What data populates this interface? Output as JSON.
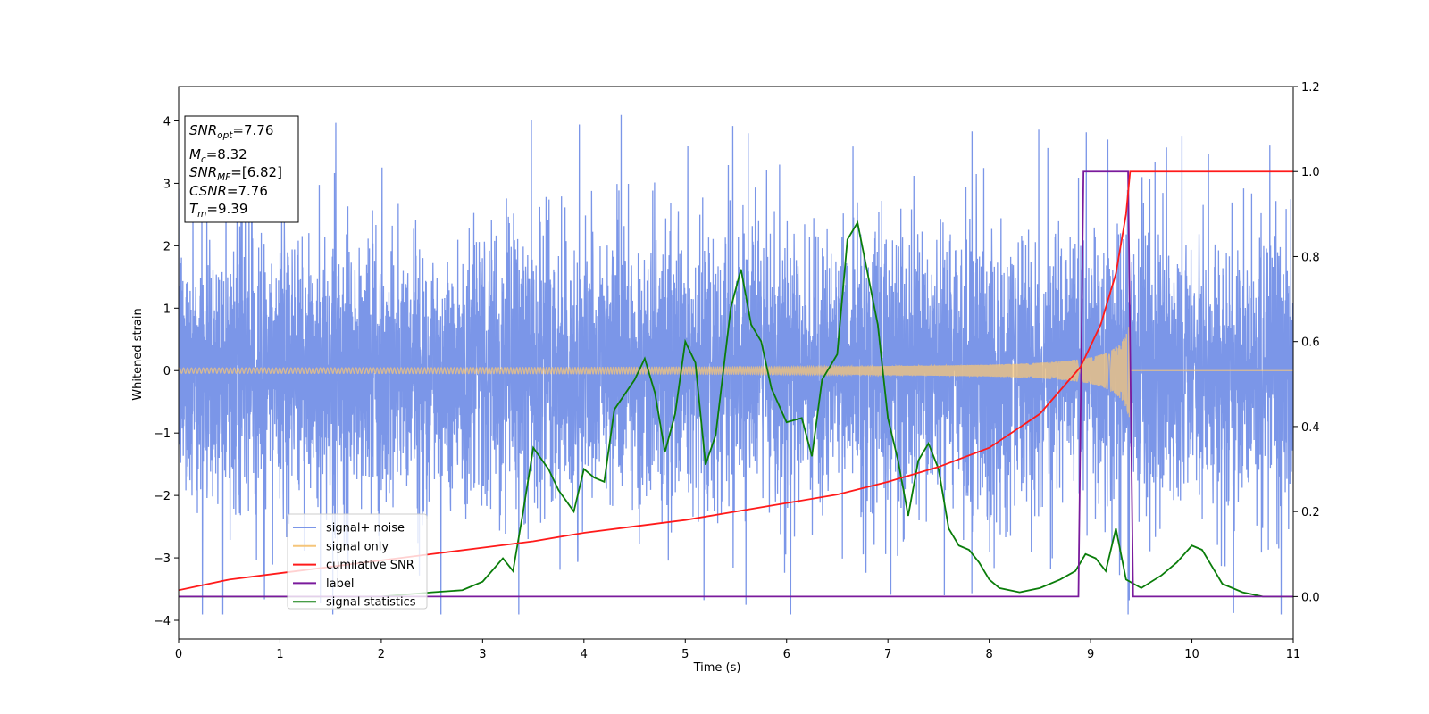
{
  "chart_data": {
    "type": "line",
    "xlabel": "Time (s)",
    "ylabel": "Whitened strain",
    "xlim": [
      0,
      11
    ],
    "ylim_left": [
      -4.3,
      4.55
    ],
    "ylim_right": [
      -0.1,
      1.2
    ],
    "x_ticks": [
      "0",
      "1",
      "2",
      "3",
      "4",
      "5",
      "6",
      "7",
      "8",
      "9",
      "10",
      "11"
    ],
    "y_ticks_left": [
      "−4",
      "−3",
      "−2",
      "−1",
      "0",
      "1",
      "2",
      "3",
      "4"
    ],
    "y_ticks_right": [
      "0.0",
      "0.2",
      "0.4",
      "0.6",
      "0.8",
      "1.0",
      "1.2"
    ],
    "grid": false,
    "legend_position": "lower-left",
    "annotation": [
      {
        "main": "SNR",
        "sub": "opt",
        "rest": "=7.76",
        "italic": true
      },
      {
        "main": "M",
        "sub": "c",
        "rest": "=8.32",
        "italic": true
      },
      {
        "main": "SNR",
        "sub": "MF",
        "rest": "=[6.82]",
        "italic": true
      },
      {
        "main": "CSNR",
        "sub": "",
        "rest": "=7.76",
        "italic": true
      },
      {
        "main": "T",
        "sub": "m",
        "rest": "=9.39",
        "italic": true
      }
    ],
    "series": [
      {
        "name": "signal+ noise",
        "axis": "left",
        "color": "#7b96e8",
        "kind": "noise",
        "amplitude_envelope": 4.2,
        "t_merge": 9.39
      },
      {
        "name": "signal only",
        "axis": "left",
        "color": "#f5c57a",
        "kind": "chirp",
        "amplitude_at_start": 0.03,
        "amplitude_at_merge": 0.8,
        "t_merge": 9.39
      },
      {
        "name": "cumilative SNR",
        "axis": "right",
        "color": "#ff1a1a",
        "x": [
          0,
          0.5,
          1,
          1.5,
          2,
          2.5,
          3,
          3.5,
          4,
          4.5,
          5,
          5.5,
          6,
          6.5,
          7,
          7.5,
          8,
          8.5,
          8.9,
          9.1,
          9.25,
          9.35,
          9.39,
          11
        ],
        "y": [
          0.015,
          0.04,
          0.055,
          0.07,
          0.085,
          0.1,
          0.115,
          0.13,
          0.15,
          0.165,
          0.18,
          0.2,
          0.22,
          0.24,
          0.27,
          0.305,
          0.35,
          0.43,
          0.54,
          0.64,
          0.76,
          0.9,
          1.0,
          1.0
        ]
      },
      {
        "name": "label",
        "axis": "right",
        "color": "#7a1a9c",
        "x": [
          0,
          8.88,
          8.93,
          9.37,
          9.42,
          11
        ],
        "y": [
          0,
          0,
          1,
          1,
          0,
          0
        ]
      },
      {
        "name": "signal statistics",
        "axis": "right",
        "color": "#0a7d0a",
        "x": [
          0,
          2.0,
          2.5,
          2.8,
          3.0,
          3.2,
          3.3,
          3.4,
          3.5,
          3.65,
          3.75,
          3.9,
          4.0,
          4.1,
          4.2,
          4.3,
          4.5,
          4.6,
          4.7,
          4.8,
          4.9,
          5.0,
          5.1,
          5.2,
          5.3,
          5.45,
          5.55,
          5.65,
          5.75,
          5.85,
          6.0,
          6.15,
          6.25,
          6.35,
          6.5,
          6.6,
          6.7,
          6.8,
          6.9,
          7.0,
          7.1,
          7.2,
          7.3,
          7.4,
          7.5,
          7.6,
          7.7,
          7.8,
          7.9,
          8.0,
          8.1,
          8.3,
          8.5,
          8.7,
          8.85,
          8.95,
          9.05,
          9.15,
          9.25,
          9.35,
          9.5,
          9.7,
          9.85,
          10.0,
          10.1,
          10.2,
          10.3,
          10.5,
          10.7,
          11.0
        ],
        "y": [
          0,
          0.0,
          0.01,
          0.015,
          0.035,
          0.09,
          0.06,
          0.2,
          0.35,
          0.3,
          0.25,
          0.2,
          0.3,
          0.28,
          0.27,
          0.44,
          0.51,
          0.56,
          0.48,
          0.34,
          0.43,
          0.6,
          0.55,
          0.31,
          0.38,
          0.68,
          0.77,
          0.64,
          0.6,
          0.49,
          0.41,
          0.42,
          0.33,
          0.51,
          0.57,
          0.84,
          0.88,
          0.76,
          0.64,
          0.42,
          0.32,
          0.19,
          0.32,
          0.36,
          0.3,
          0.16,
          0.12,
          0.11,
          0.08,
          0.04,
          0.02,
          0.01,
          0.02,
          0.04,
          0.06,
          0.1,
          0.09,
          0.06,
          0.16,
          0.04,
          0.02,
          0.05,
          0.08,
          0.12,
          0.11,
          0.07,
          0.03,
          0.01,
          0.0,
          0.0
        ]
      }
    ]
  }
}
